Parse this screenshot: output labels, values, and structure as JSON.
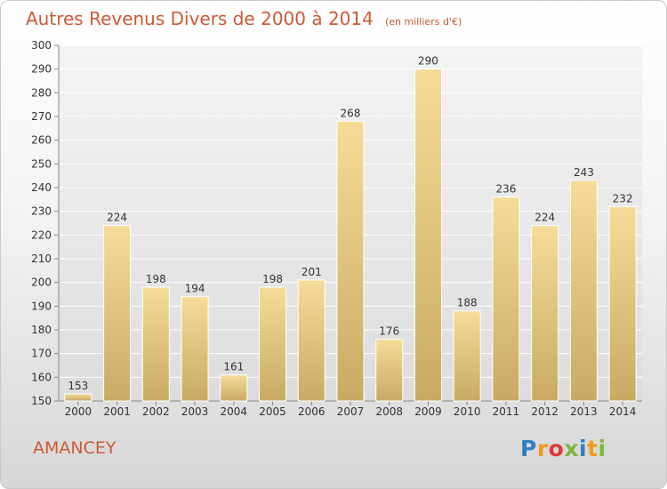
{
  "header": {
    "title": "Autres Revenus Divers de 2000 à 2014",
    "unit": "(en milliers d'€)"
  },
  "footer": {
    "place": "AMANCEY"
  },
  "logo": {
    "letters": [
      "P",
      "r",
      "o",
      "x",
      "i",
      "t",
      "i"
    ],
    "colors": [
      "#2e7fc1",
      "#f39a1b",
      "#e0373b",
      "#7bb93a",
      "#2e7fc1",
      "#f39a1b",
      "#7bb93a"
    ]
  },
  "chart_data": {
    "type": "bar",
    "categories": [
      "2000",
      "2001",
      "2002",
      "2003",
      "2004",
      "2005",
      "2006",
      "2007",
      "2008",
      "2009",
      "2010",
      "2011",
      "2012",
      "2013",
      "2014"
    ],
    "values": [
      153,
      224,
      198,
      194,
      161,
      198,
      201,
      268,
      176,
      290,
      188,
      236,
      224,
      243,
      232
    ],
    "title": "Autres Revenus Divers de 2000 à 2014",
    "xlabel": "",
    "ylabel": "",
    "ylim": [
      150,
      300
    ],
    "yticks": [
      150,
      160,
      170,
      180,
      190,
      200,
      210,
      220,
      230,
      240,
      250,
      260,
      270,
      280,
      290,
      300
    ],
    "grid": true,
    "bar_color": "#e3c57a"
  }
}
